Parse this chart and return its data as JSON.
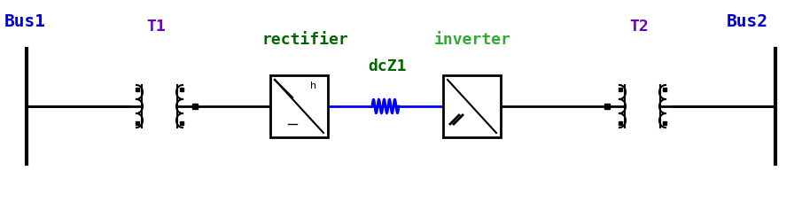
{
  "bg_color": "#ffffff",
  "bus1_label": "Bus1",
  "bus2_label": "Bus2",
  "t1_label": "T1",
  "t2_label": "T2",
  "rectifier_label": "rectifier",
  "inverter_label": "inverter",
  "dcz1_label": "dcZ1",
  "bus_color": "#0000cc",
  "transformer_color": "#000000",
  "line_color": "#000000",
  "dc_line_color": "#0000ff",
  "rectifier_color": "#006600",
  "inverter_color": "#006600",
  "dcz1_color_top": "#00cccc",
  "dcz1_color_bottom": "#006600",
  "t_label_color": "#6600cc",
  "fig_width": 9.05,
  "fig_height": 2.45
}
